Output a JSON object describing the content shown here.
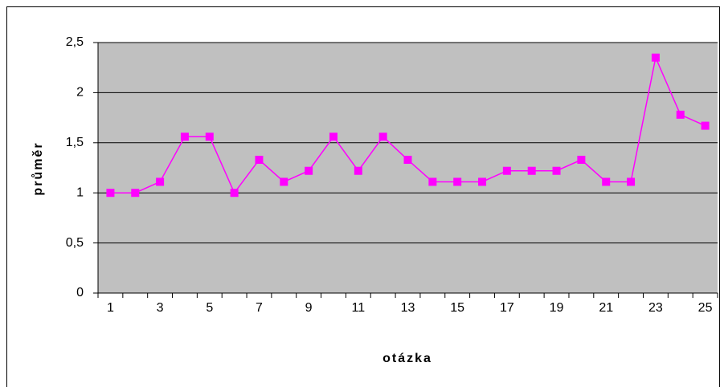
{
  "chart_data": {
    "type": "line",
    "x_label": "otázka",
    "y_label": "průměr",
    "categories": [
      "1",
      null,
      "3",
      null,
      "5",
      null,
      "7",
      null,
      "9",
      null,
      "11",
      null,
      "13",
      null,
      "15",
      null,
      "17",
      null,
      "19",
      null,
      "21",
      null,
      "23",
      null,
      "25"
    ],
    "series": [
      {
        "name": "průměr",
        "color": "#ff00ff",
        "values": [
          1.0,
          1.0,
          1.11,
          1.56,
          1.56,
          1.0,
          1.33,
          1.11,
          1.22,
          1.56,
          1.22,
          1.56,
          1.33,
          1.11,
          1.11,
          1.11,
          1.22,
          1.22,
          1.22,
          1.33,
          1.11,
          1.11,
          2.35,
          1.78,
          1.67
        ]
      }
    ],
    "ylim": [
      0,
      2.5
    ],
    "yticks": [
      0,
      {
        "value": 0.5,
        "label": "0,5"
      },
      1,
      {
        "value": 1.5,
        "label": "1,5"
      },
      2,
      {
        "value": 2.5,
        "label": "2,5"
      }
    ],
    "grid": true,
    "plot_background": "#c0c0c0"
  }
}
